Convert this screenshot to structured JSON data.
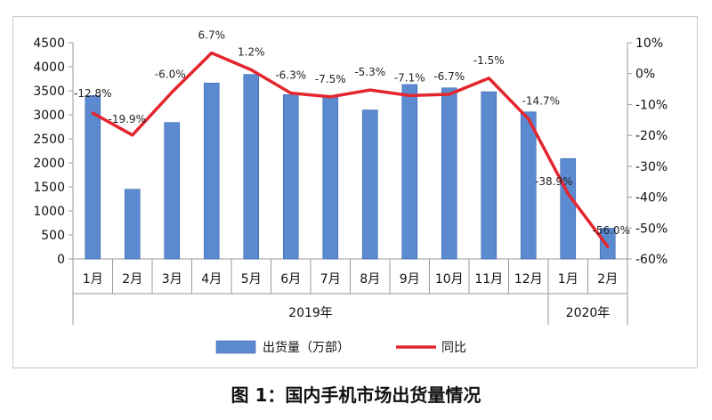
{
  "caption": "图 1：国内手机市场出货量情况",
  "colors": {
    "bar": "#5b8ad1",
    "bar_edge": "#3a66ad",
    "line": "#e3262e",
    "axis": "#9a9a9a"
  },
  "chart_data": {
    "type": "bar",
    "categories": [
      "1月",
      "2月",
      "3月",
      "4月",
      "5月",
      "6月",
      "7月",
      "8月",
      "9月",
      "10月",
      "11月",
      "12月",
      "1月",
      "2月"
    ],
    "year_groups": [
      {
        "label": "2019年",
        "start": 0,
        "end": 11
      },
      {
        "label": "2020年",
        "start": 12,
        "end": 13
      }
    ],
    "series": [
      {
        "name": "出货量（万部）",
        "type": "bar",
        "axis": "left",
        "values": [
          3400,
          1450,
          2840,
          3660,
          3840,
          3420,
          3380,
          3100,
          3630,
          3560,
          3480,
          3060,
          2090,
          640
        ]
      },
      {
        "name": "同比",
        "type": "line",
        "axis": "right",
        "values": [
          -12.8,
          -19.9,
          -6.0,
          6.7,
          1.2,
          -6.3,
          -7.5,
          -5.3,
          -7.1,
          -6.7,
          -1.5,
          -14.7,
          -38.9,
          -56.0
        ],
        "labels": [
          "-12.8%",
          "-19.9%",
          "-6.0%",
          "6.7%",
          "1.2%",
          "-6.3%",
          "-7.5%",
          "-5.3%",
          "-7.1%",
          "-6.7%",
          "-1.5%",
          "-14.7%",
          "-38.9%",
          "-56.0%"
        ]
      }
    ],
    "y_left": {
      "min": 0,
      "max": 4500,
      "ticks": [
        "0",
        "500",
        "1000",
        "1500",
        "2000",
        "2500",
        "3000",
        "3500",
        "4000",
        "4500"
      ]
    },
    "y_right": {
      "min": -60,
      "max": 10,
      "ticks": [
        "-60%",
        "-50%",
        "-40%",
        "-30%",
        "-20%",
        "-10%",
        "0%",
        "10%"
      ]
    },
    "legend_position": "bottom",
    "grid": false
  }
}
